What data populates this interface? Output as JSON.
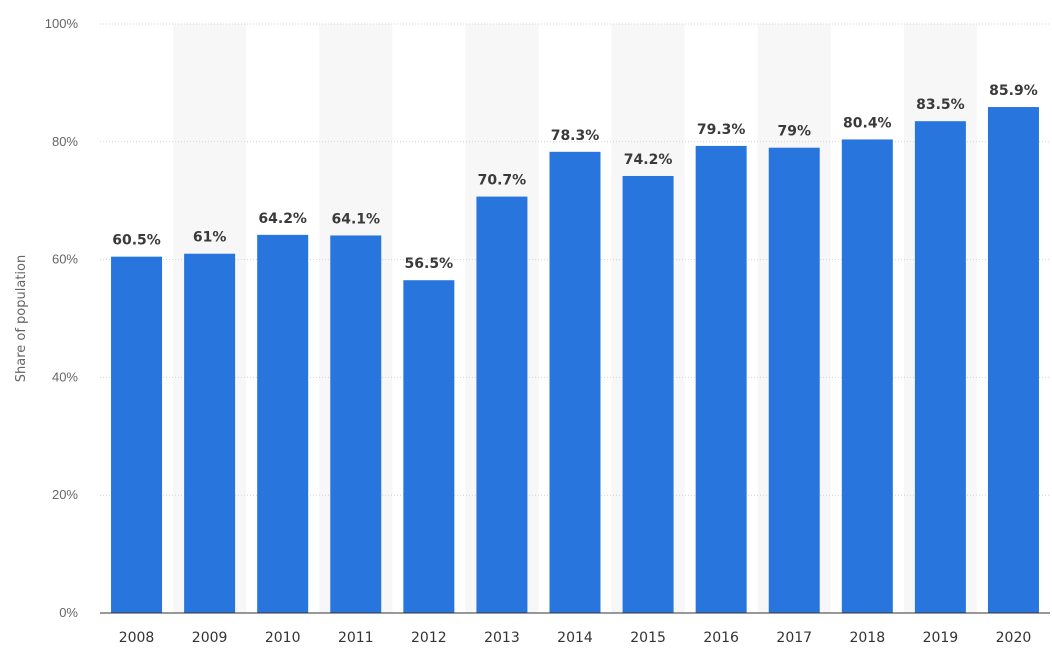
{
  "chart_data": {
    "type": "bar",
    "categories": [
      "2008",
      "2009",
      "2010",
      "2011",
      "2012",
      "2013",
      "2014",
      "2015",
      "2016",
      "2017",
      "2018",
      "2019",
      "2020"
    ],
    "values": [
      60.5,
      61,
      64.2,
      64.1,
      56.5,
      70.7,
      78.3,
      74.2,
      79.3,
      79,
      80.4,
      83.5,
      85.9
    ],
    "value_labels": [
      "60.5%",
      "61%",
      "64.2%",
      "64.1%",
      "56.5%",
      "70.7%",
      "78.3%",
      "74.2%",
      "79.3%",
      "79%",
      "80.4%",
      "83.5%",
      "85.9%"
    ],
    "ylabel": "Share of population",
    "ylim": [
      0,
      100
    ],
    "yticks": [
      0,
      20,
      40,
      60,
      80,
      100
    ],
    "ytick_labels": [
      "0%",
      "20%",
      "40%",
      "60%",
      "80%",
      "100%"
    ],
    "grid": true,
    "bar_color": "#2876dd",
    "band_color": "#f7f7f7"
  }
}
